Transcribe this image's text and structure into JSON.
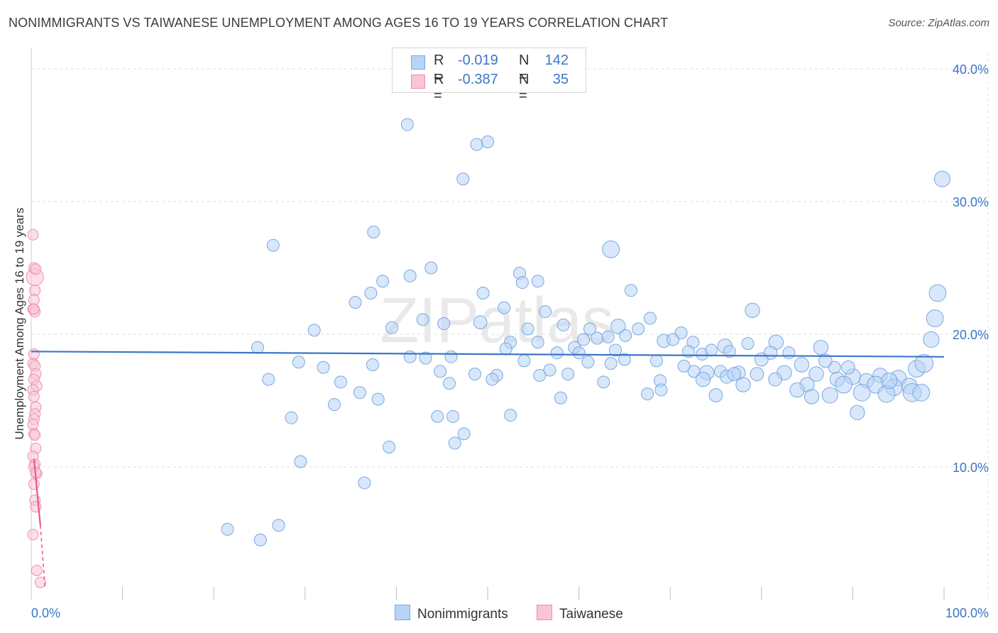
{
  "title": "NONIMMIGRANTS VS TAIWANESE UNEMPLOYMENT AMONG AGES 16 TO 19 YEARS CORRELATION CHART",
  "source": "Source: ZipAtlas.com",
  "watermark": "ZIPatlas",
  "legend": {
    "r_label": "R =",
    "n_label": "N =",
    "rows": [
      {
        "name": "Nonimmigrants",
        "r": "-0.019",
        "n": "142",
        "fill": "#b8d4f5",
        "stroke": "#7aa8e0"
      },
      {
        "name": "Taiwanese",
        "r": "-0.387",
        "n": "35",
        "fill": "#f9c4d3",
        "stroke": "#ef8fae"
      }
    ]
  },
  "bottom_legend": [
    {
      "label": "Nonimmigrants",
      "fill": "#b8d4f5",
      "stroke": "#7aa8e0"
    },
    {
      "label": "Taiwanese",
      "fill": "#f9c4d3",
      "stroke": "#ef8fae"
    }
  ],
  "chart_data": {
    "type": "scatter",
    "title": "NONIMMIGRANTS VS TAIWANESE UNEMPLOYMENT AMONG AGES 16 TO 19 YEARS CORRELATION CHART",
    "xlabel": "",
    "ylabel": "Unemployment Among Ages 16 to 19 years",
    "xlim": [
      0,
      100
    ],
    "ylim": [
      0,
      40
    ],
    "x_tick_labels": [
      {
        "value": 0,
        "label": "0.0%"
      },
      {
        "value": 100,
        "label": "100.0%"
      }
    ],
    "y_tick_labels": [
      {
        "value": 10,
        "label": "10.0%"
      },
      {
        "value": 20,
        "label": "20.0%"
      },
      {
        "value": 30,
        "label": "30.0%"
      },
      {
        "value": 40,
        "label": "40.0%"
      }
    ],
    "y_gridlines": [
      10,
      20,
      30,
      40
    ],
    "x_minor_ticks": [
      10,
      20,
      30,
      40,
      50,
      60,
      70,
      80,
      90,
      100
    ],
    "colors": {
      "blue": "#3b76c9",
      "blue_fill": "#b8d4f5",
      "pink": "#e8588b",
      "pink_fill": "#f9c4d3"
    },
    "series": [
      {
        "name": "Nonimmigrants",
        "color": "blue",
        "trend": {
          "x0": 0,
          "y0": 18.7,
          "x1": 100,
          "y1": 18.3
        },
        "points": [
          [
            41.2,
            35.8,
            1
          ],
          [
            48.8,
            34.3,
            1
          ],
          [
            50.0,
            34.5,
            1
          ],
          [
            47.3,
            31.7,
            1
          ],
          [
            99.8,
            31.7,
            1.3
          ],
          [
            37.5,
            27.7,
            1
          ],
          [
            26.5,
            26.7,
            1
          ],
          [
            63.5,
            26.4,
            1.4
          ],
          [
            41.5,
            24.4,
            1
          ],
          [
            43.8,
            25.0,
            1
          ],
          [
            53.5,
            24.6,
            1
          ],
          [
            53.8,
            23.9,
            1
          ],
          [
            55.5,
            24.0,
            1
          ],
          [
            38.5,
            24.0,
            1
          ],
          [
            49.5,
            23.1,
            1
          ],
          [
            37.2,
            23.1,
            1
          ],
          [
            65.7,
            23.3,
            1
          ],
          [
            35.5,
            22.4,
            1
          ],
          [
            99.3,
            23.1,
            1.4
          ],
          [
            51.8,
            22.0,
            1
          ],
          [
            56.3,
            21.7,
            1
          ],
          [
            79.0,
            21.8,
            1.2
          ],
          [
            42.9,
            21.1,
            1
          ],
          [
            45.2,
            20.8,
            1
          ],
          [
            49.2,
            20.9,
            1.1
          ],
          [
            58.3,
            20.7,
            1
          ],
          [
            64.3,
            20.6,
            1.2
          ],
          [
            67.8,
            21.2,
            1
          ],
          [
            99.0,
            21.2,
            1.4
          ],
          [
            31.0,
            20.3,
            1
          ],
          [
            39.5,
            20.5,
            1
          ],
          [
            61.2,
            20.4,
            1
          ],
          [
            66.5,
            20.4,
            1
          ],
          [
            71.2,
            20.1,
            1
          ],
          [
            54.4,
            20.4,
            1
          ],
          [
            60.5,
            19.6,
            1
          ],
          [
            62.0,
            19.7,
            1
          ],
          [
            63.2,
            19.8,
            1
          ],
          [
            65.1,
            19.9,
            1
          ],
          [
            69.3,
            19.5,
            1.1
          ],
          [
            70.3,
            19.6,
            1
          ],
          [
            72.5,
            19.4,
            1
          ],
          [
            76.0,
            19.1,
            1.2
          ],
          [
            78.5,
            19.3,
            1
          ],
          [
            81.6,
            19.4,
            1.2
          ],
          [
            86.5,
            19.0,
            1.2
          ],
          [
            98.6,
            19.6,
            1.3
          ],
          [
            24.8,
            19.0,
            1
          ],
          [
            52.5,
            19.4,
            1
          ],
          [
            52.0,
            18.9,
            1
          ],
          [
            55.5,
            19.4,
            1
          ],
          [
            59.5,
            19.0,
            1
          ],
          [
            64.0,
            18.8,
            1
          ],
          [
            72.0,
            18.7,
            1
          ],
          [
            73.5,
            18.5,
            1
          ],
          [
            74.5,
            18.8,
            1
          ],
          [
            76.5,
            18.7,
            1
          ],
          [
            81.0,
            18.6,
            1.1
          ],
          [
            83.0,
            18.6,
            1
          ],
          [
            41.5,
            18.3,
            1
          ],
          [
            43.2,
            18.2,
            1
          ],
          [
            57.6,
            18.6,
            1
          ],
          [
            60.0,
            18.6,
            1
          ],
          [
            65.0,
            18.1,
            1
          ],
          [
            37.4,
            17.7,
            1
          ],
          [
            29.3,
            17.9,
            1
          ],
          [
            84.4,
            17.7,
            1.2
          ],
          [
            88.0,
            17.5,
            1
          ],
          [
            32.0,
            17.5,
            1
          ],
          [
            44.8,
            17.2,
            1
          ],
          [
            48.6,
            17.0,
            1
          ],
          [
            51.0,
            16.9,
            1
          ],
          [
            56.8,
            17.3,
            1
          ],
          [
            58.8,
            17.0,
            1
          ],
          [
            72.6,
            17.2,
            1
          ],
          [
            74.0,
            17.1,
            1.2
          ],
          [
            75.5,
            17.2,
            1
          ],
          [
            76.2,
            16.8,
            1.1
          ],
          [
            77.5,
            17.1,
            1.1
          ],
          [
            79.5,
            17.0,
            1.1
          ],
          [
            82.5,
            17.1,
            1.2
          ],
          [
            86.0,
            17.0,
            1.2
          ],
          [
            88.3,
            16.6,
            1.2
          ],
          [
            90.0,
            16.8,
            1.3
          ],
          [
            91.5,
            16.5,
            1.2
          ],
          [
            93.0,
            16.9,
            1.2
          ],
          [
            95.0,
            16.7,
            1.3
          ],
          [
            97.0,
            17.4,
            1.4
          ],
          [
            97.8,
            17.8,
            1.5
          ],
          [
            96.2,
            16.1,
            1.3
          ],
          [
            26.0,
            16.6,
            1
          ],
          [
            33.9,
            16.4,
            1
          ],
          [
            45.8,
            16.3,
            1
          ],
          [
            50.5,
            16.6,
            1
          ],
          [
            55.7,
            16.9,
            1
          ],
          [
            62.7,
            16.4,
            1
          ],
          [
            68.9,
            16.5,
            1
          ],
          [
            73.6,
            16.6,
            1.2
          ],
          [
            78.0,
            16.2,
            1.2
          ],
          [
            81.5,
            16.6,
            1.1
          ],
          [
            85.0,
            16.2,
            1.2
          ],
          [
            89.0,
            16.2,
            1.4
          ],
          [
            92.5,
            16.2,
            1.4
          ],
          [
            94.5,
            16.0,
            1.4
          ],
          [
            36.0,
            15.6,
            1
          ],
          [
            38.0,
            15.1,
            1
          ],
          [
            58.0,
            15.2,
            1
          ],
          [
            67.5,
            15.5,
            1
          ],
          [
            69.0,
            15.8,
            1
          ],
          [
            75.0,
            15.4,
            1.1
          ],
          [
            83.9,
            15.8,
            1.2
          ],
          [
            85.5,
            15.3,
            1.2
          ],
          [
            87.5,
            15.4,
            1.3
          ],
          [
            91.0,
            15.6,
            1.4
          ],
          [
            93.7,
            15.5,
            1.4
          ],
          [
            96.5,
            15.6,
            1.5
          ],
          [
            97.5,
            15.6,
            1.4
          ],
          [
            33.2,
            14.7,
            1
          ],
          [
            90.5,
            14.1,
            1.2
          ],
          [
            28.5,
            13.7,
            1
          ],
          [
            44.5,
            13.8,
            1
          ],
          [
            46.2,
            13.8,
            1
          ],
          [
            52.5,
            13.9,
            1
          ],
          [
            47.4,
            12.5,
            1
          ],
          [
            46.4,
            11.8,
            1
          ],
          [
            39.2,
            11.5,
            1
          ],
          [
            29.5,
            10.4,
            1
          ],
          [
            36.5,
            8.8,
            1
          ],
          [
            21.5,
            5.3,
            1
          ],
          [
            27.1,
            5.6,
            1
          ],
          [
            25.1,
            4.5,
            1
          ],
          [
            46.0,
            18.3,
            1
          ],
          [
            54.0,
            18.0,
            1
          ],
          [
            61.0,
            17.9,
            1
          ],
          [
            68.5,
            18.0,
            1
          ],
          [
            80.0,
            18.1,
            1.1
          ],
          [
            87.0,
            18.0,
            1.1
          ],
          [
            89.5,
            17.5,
            1.1
          ],
          [
            63.5,
            17.8,
            1
          ],
          [
            71.5,
            17.6,
            1
          ],
          [
            77.0,
            17.0,
            1.1
          ],
          [
            94.0,
            16.5,
            1.3
          ]
        ]
      },
      {
        "name": "Taiwanese",
        "color": "pink",
        "trend": {
          "x0": 0.3,
          "y0": 10.6,
          "x1": 1.0,
          "y1": 5.6,
          "dash_to": {
            "x": 1.5,
            "y": 1.0
          }
        },
        "points": [
          [
            0.2,
            27.5,
            1
          ],
          [
            0.4,
            24.3,
            1.6
          ],
          [
            0.3,
            25.0,
            1
          ],
          [
            0.5,
            24.9,
            1
          ],
          [
            0.4,
            23.3,
            1
          ],
          [
            0.3,
            22.6,
            1
          ],
          [
            0.2,
            21.9,
            1
          ],
          [
            0.4,
            21.7,
            1
          ],
          [
            0.3,
            21.9,
            1
          ],
          [
            0.2,
            17.8,
            1
          ],
          [
            0.4,
            17.6,
            1
          ],
          [
            0.5,
            17.0,
            1
          ],
          [
            0.3,
            16.6,
            1
          ],
          [
            0.6,
            16.1,
            1
          ],
          [
            0.2,
            15.8,
            1
          ],
          [
            0.3,
            15.3,
            1
          ],
          [
            0.5,
            14.5,
            1
          ],
          [
            0.4,
            14.0,
            1
          ],
          [
            0.3,
            13.6,
            1
          ],
          [
            0.2,
            13.2,
            1
          ],
          [
            0.3,
            12.5,
            1
          ],
          [
            0.4,
            12.4,
            1
          ],
          [
            0.5,
            11.4,
            1
          ],
          [
            0.2,
            10.8,
            1
          ],
          [
            0.4,
            10.2,
            1
          ],
          [
            0.3,
            10.0,
            1
          ],
          [
            0.6,
            9.5,
            1
          ],
          [
            0.5,
            9.6,
            1
          ],
          [
            0.3,
            8.7,
            1
          ],
          [
            0.4,
            7.5,
            1
          ],
          [
            0.5,
            7.0,
            1
          ],
          [
            0.2,
            4.9,
            1
          ],
          [
            0.6,
            2.2,
            1
          ],
          [
            1.0,
            1.3,
            1
          ],
          [
            0.3,
            18.5,
            1
          ]
        ]
      }
    ]
  }
}
